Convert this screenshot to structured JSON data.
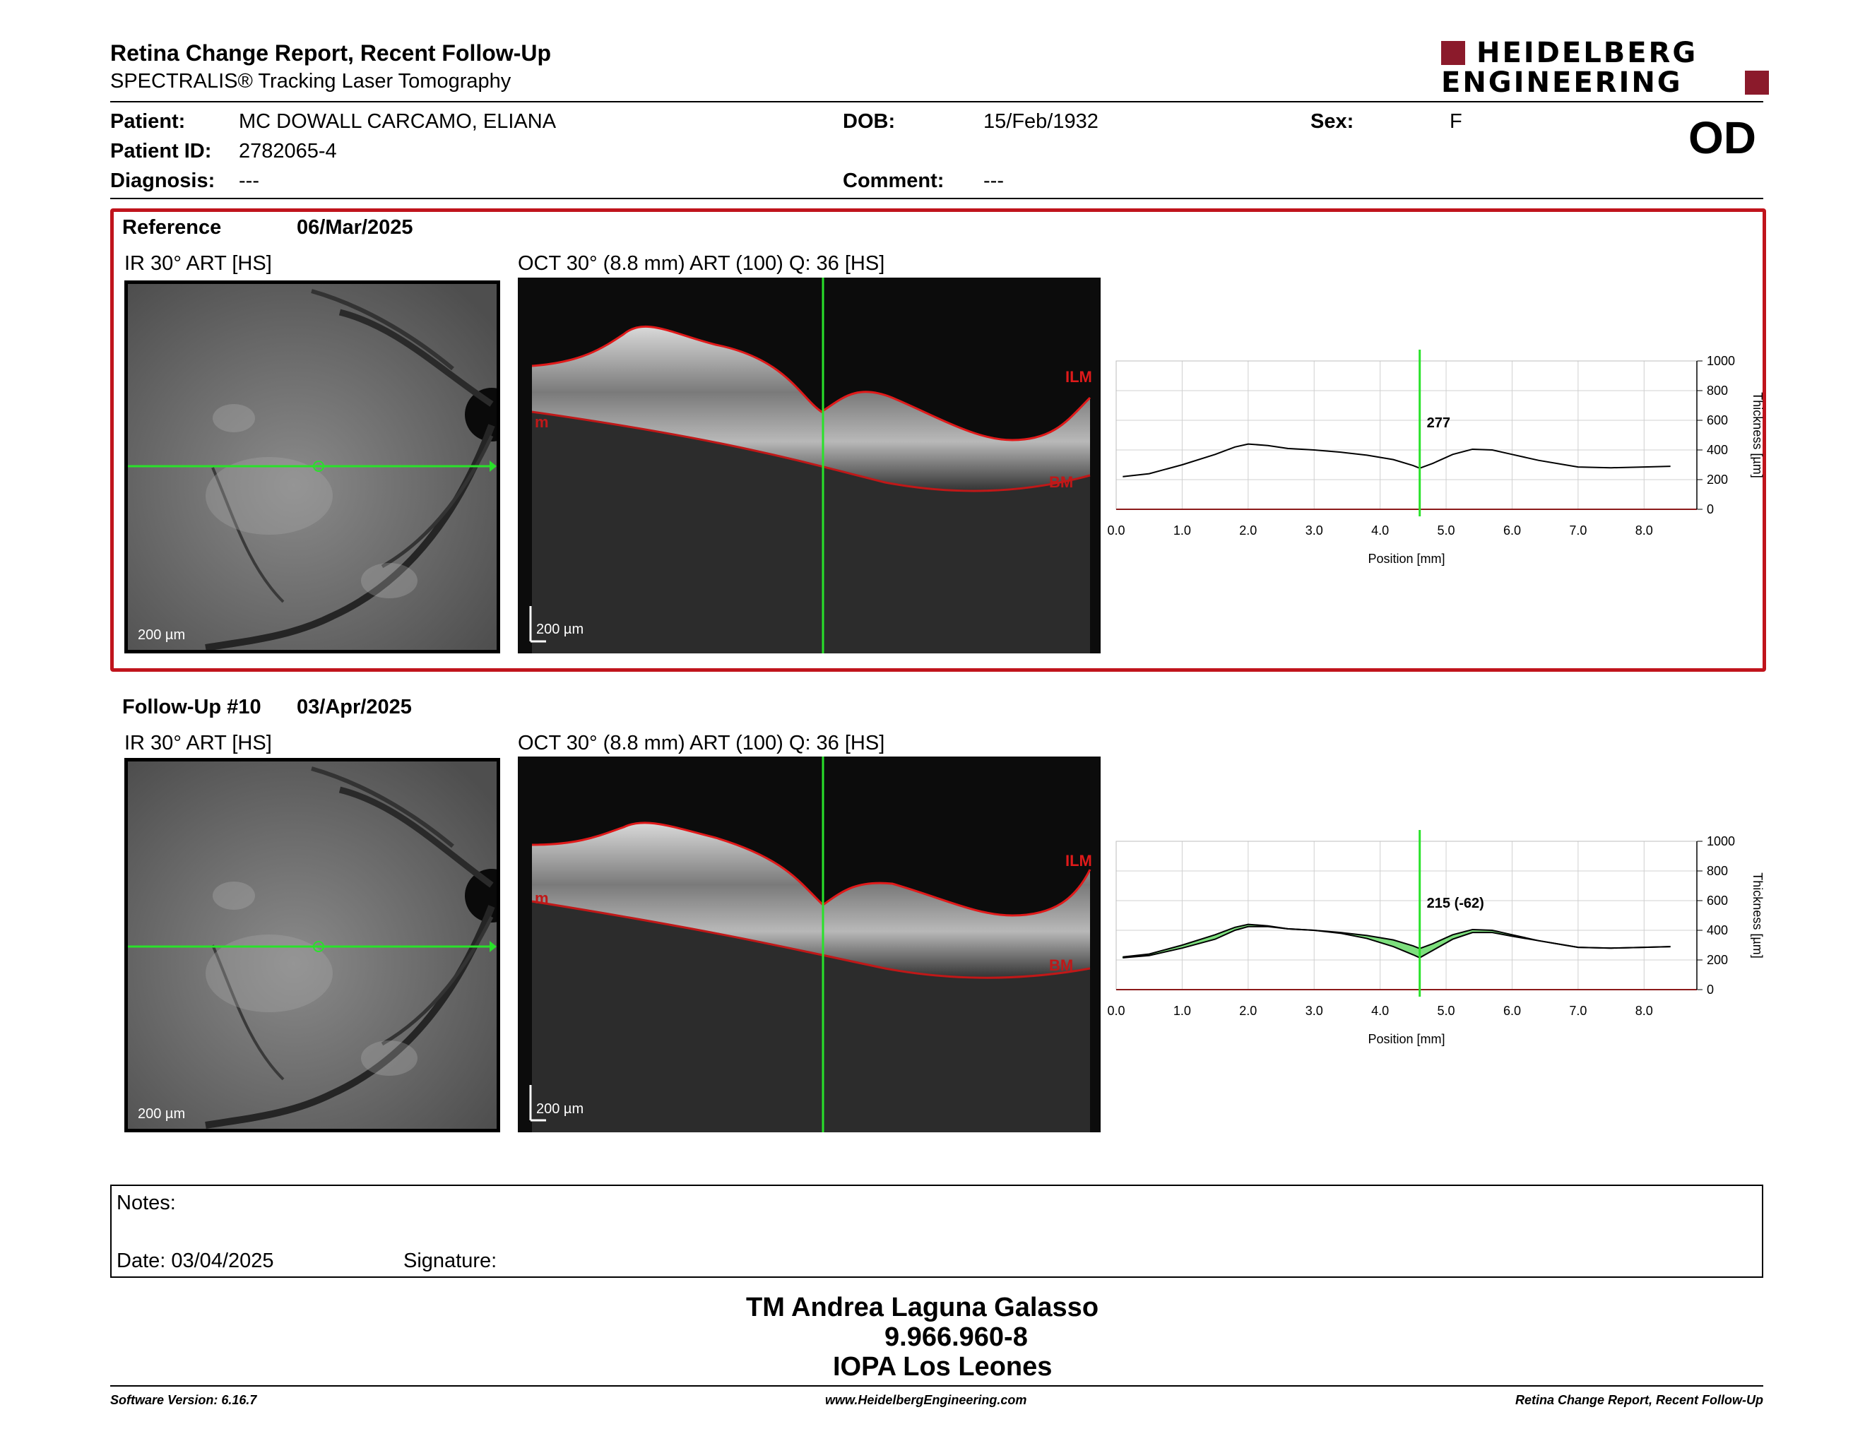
{
  "report": {
    "title": "Retina Change Report, Recent Follow-Up",
    "subtitle": "SPECTRALIS® Tracking Laser Tomography",
    "logo_line1": "HEIDELBERG",
    "logo_line2": "ENGINEERING"
  },
  "patient": {
    "patient_label": "Patient:",
    "patient_name": "MC DOWALL CARCAMO, ELIANA",
    "id_label": "Patient ID:",
    "id_value": "2782065-4",
    "diagnosis_label": "Diagnosis:",
    "diagnosis_value": "---",
    "dob_label": "DOB:",
    "dob_value": "15/Feb/1932",
    "comment_label": "Comment:",
    "comment_value": "---",
    "sex_label": "Sex:",
    "sex_value": "F",
    "eye": "OD"
  },
  "reference": {
    "label": "Reference",
    "date": "06/Mar/2025",
    "ir_title": "IR 30° ART [HS]",
    "oct_title": "OCT 30° (8.8 mm) ART (100) Q: 36 [HS]",
    "scale_ir": "200 µm",
    "scale_oct": "200 µm",
    "ilm_label": "ILM",
    "bm_label": "BM",
    "bm_left_label": "m",
    "cursor_value": "277"
  },
  "followup": {
    "label": "Follow-Up #10",
    "date": "03/Apr/2025",
    "ir_title": "IR 30° ART [HS]",
    "oct_title": "OCT 30° (8.8 mm) ART (100) Q: 36 [HS]",
    "scale_ir": "200 µm",
    "scale_oct": "200 µm",
    "ilm_label": "ILM",
    "bm_label": "BM",
    "bm_left_label": "m",
    "cursor_value": "215 (-62)"
  },
  "chart_data": [
    {
      "type": "line",
      "title": "",
      "xlabel": "Position [mm]",
      "ylabel": "Thickness [µm]",
      "xlim": [
        0.0,
        8.8
      ],
      "ylim": [
        0,
        1000
      ],
      "xticks": [
        "0.0",
        "1.0",
        "2.0",
        "3.0",
        "4.0",
        "5.0",
        "6.0",
        "7.0",
        "8.0"
      ],
      "yticks": [
        "0",
        "200",
        "400",
        "600",
        "800",
        "1000"
      ],
      "grid": true,
      "cursor_x": 4.6,
      "series": [
        {
          "x": [
            0.1,
            0.5,
            1.0,
            1.5,
            1.8,
            2.0,
            2.3,
            2.6,
            3.0,
            3.4,
            3.8,
            4.2,
            4.5,
            4.6,
            4.8,
            5.1,
            5.4,
            5.7,
            6.0,
            6.4,
            6.8,
            7.0,
            7.5,
            8.0,
            8.4
          ],
          "values": [
            220,
            240,
            300,
            370,
            420,
            440,
            430,
            410,
            400,
            385,
            365,
            335,
            295,
            277,
            310,
            370,
            405,
            400,
            370,
            330,
            300,
            285,
            280,
            285,
            290
          ],
          "color": "#000000"
        }
      ]
    },
    {
      "type": "area",
      "title": "",
      "xlabel": "Position [mm]",
      "ylabel": "Thickness [µm]",
      "xlim": [
        0.0,
        8.8
      ],
      "ylim": [
        0,
        1000
      ],
      "xticks": [
        "0.0",
        "1.0",
        "2.0",
        "3.0",
        "4.0",
        "5.0",
        "6.0",
        "7.0",
        "8.0"
      ],
      "yticks": [
        "0",
        "200",
        "400",
        "600",
        "800",
        "1000"
      ],
      "grid": true,
      "cursor_x": 4.6,
      "series": [
        {
          "x": [
            0.1,
            0.5,
            1.0,
            1.5,
            1.8,
            2.0,
            2.3,
            2.6,
            3.0,
            3.4,
            3.8,
            4.2,
            4.5,
            4.6,
            4.8,
            5.1,
            5.4,
            5.7,
            6.0,
            6.4,
            6.8,
            7.0,
            7.5,
            8.0,
            8.4
          ],
          "values": [
            220,
            240,
            300,
            370,
            420,
            440,
            430,
            410,
            400,
            385,
            365,
            335,
            295,
            277,
            310,
            370,
            405,
            400,
            370,
            330,
            300,
            285,
            280,
            285,
            290
          ],
          "color": "#000000"
        },
        {
          "x": [
            0.1,
            0.5,
            1.0,
            1.5,
            1.8,
            2.0,
            2.3,
            2.6,
            3.0,
            3.4,
            3.8,
            4.2,
            4.5,
            4.6,
            4.8,
            5.1,
            5.4,
            5.7,
            6.0,
            6.4,
            6.8,
            7.0,
            7.5,
            8.0,
            8.4
          ],
          "values": [
            215,
            230,
            280,
            340,
            400,
            425,
            425,
            410,
            400,
            380,
            345,
            290,
            235,
            215,
            265,
            340,
            385,
            385,
            360,
            330,
            300,
            285,
            280,
            285,
            290
          ],
          "color": "#000000"
        }
      ],
      "fill_color": "#7ddf7d"
    }
  ],
  "notes": {
    "notes_label": "Notes:",
    "date_label": "Date: 03/04/2025",
    "signature_label": "Signature:"
  },
  "operator": {
    "name": "TM Andrea Laguna Galasso",
    "rut": "9.966.960-8",
    "institution": "IOPA Los Leones"
  },
  "footer": {
    "software": "Software Version: 6.16.7",
    "website": "www.HeidelbergEngineering.com",
    "report_name": "Retina Change Report, Recent Follow-Up"
  }
}
